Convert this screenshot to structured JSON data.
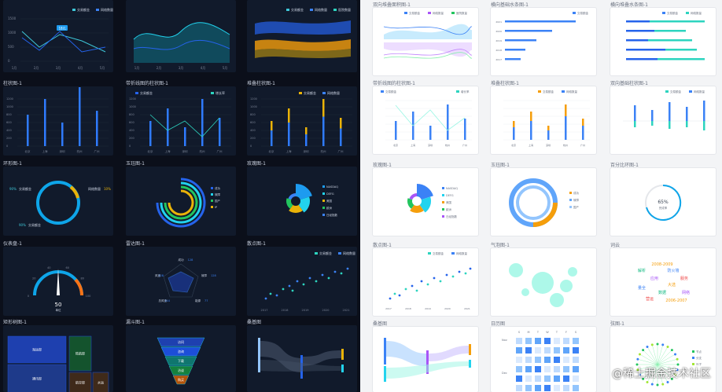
{
  "dark_titles": [
    "柱状图-1",
    "带折线图的柱状图-1",
    "堆叠柱状图-1",
    "环形图-1",
    "玉珏图-1",
    "玫瑰图-1",
    "仪表盘-1",
    "雷达图-1",
    "散点图-1",
    "矩形树图-1",
    "漏斗图-1",
    "桑基图"
  ],
  "light_titles": [
    "双向堆叠面积图-1",
    "横向基础水条图-1",
    "横向堆叠水条图-1",
    "带折线图的柱状图-1",
    "堆叠柱状图-1",
    "双向基础柱状图-1",
    "玫瑰图-1",
    "玉珏图-1",
    "百分比环图-1",
    "散点图-1",
    "气泡图-1",
    "词云",
    "桑基图",
    "日历图",
    "弦图-1"
  ],
  "legend": {
    "completed": "交易额金",
    "web": "网络数量",
    "hospital": "医院数量",
    "residence": "居民数量",
    "mall": "商城数量",
    "other": "其他数量",
    "nasdaq": "NASDAQ",
    "rate": "增长率"
  },
  "months": [
    "1月",
    "2月",
    "3月",
    "4月",
    "5月"
  ],
  "cities": [
    "北京",
    "上海",
    "深圳",
    "杭州",
    "广州"
  ],
  "years": [
    "2017",
    "2018",
    "2019",
    "2020",
    "2021"
  ],
  "dark_line": {
    "tooltip": "18元",
    "y_ticks": [
      "1500",
      "1000",
      "500",
      "0"
    ]
  },
  "bar_ticks": [
    "1200",
    "1000",
    "800",
    "600",
    "400",
    "200",
    "0"
  ],
  "donut": {
    "left_pct": "90%",
    "right_pct": "10%",
    "bottom_pct": "90%",
    "left_label": "交易额金",
    "right_label": "网络数量"
  },
  "gauge": {
    "value": "50",
    "unit": "单位",
    "ticks": [
      "0",
      "20",
      "40",
      "60",
      "80",
      "100"
    ]
  },
  "radar": {
    "labels": [
      "成功",
      "故障",
      "能源",
      "总风速",
      "风速"
    ],
    "values": [
      "128",
      "128",
      "77",
      "144",
      "128"
    ]
  },
  "rose_legend": [
    "NASDAQ",
    "DEFG",
    "美国",
    "欧洲",
    "日经指数"
  ],
  "jade_legend": [
    "成功",
    "故障",
    "国产",
    "IP"
  ],
  "treemap": [
    "海运部",
    "通讯部",
    "陆航部",
    "航空部",
    "水运"
  ],
  "funnel": [
    "访问",
    "咨询",
    "下载",
    "洽谈",
    "购买"
  ],
  "pct_ring": {
    "value": "65%",
    "label": "完成率"
  },
  "calendar": {
    "weekdays": [
      "S",
      "M",
      "T",
      "W",
      "T",
      "F",
      "S"
    ],
    "months": [
      "Nov",
      "Dec",
      "Jan"
    ]
  },
  "wordcloud": [
    "2008-2009",
    "防火墙",
    "解析",
    "应用",
    "服务",
    "大选",
    "量全",
    "数据",
    "网络",
    "营运",
    "2006-2007"
  ],
  "chord_legend": [
    "节点",
    "分支",
    "叶子"
  ],
  "watermark": "@稀土掘金技术社区"
}
